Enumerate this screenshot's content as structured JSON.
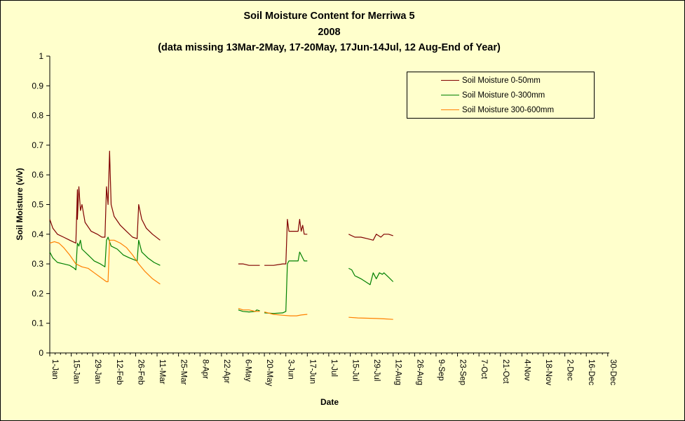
{
  "chart_data": {
    "type": "line",
    "title": "Soil Moisture Content for Merriwa 5",
    "subtitle": "2008",
    "note": "(data missing 13Mar-2May, 17-20May, 17Jun-14Jul, 12 Aug-End of Year)",
    "xlabel": "Date",
    "ylabel": "Soil Moisture (v/v)",
    "ylim": [
      0,
      1
    ],
    "y_ticks": [
      "0",
      "0.1",
      "0.2",
      "0.3",
      "0.4",
      "0.5",
      "0.6",
      "0.7",
      "0.8",
      "0.9",
      "1"
    ],
    "x_range": [
      "2008-01-01",
      "2008-12-31"
    ],
    "x_ticks": [
      {
        "date": "2008-01-01",
        "label": "1-Jan"
      },
      {
        "date": "2008-01-15",
        "label": "15-Jan"
      },
      {
        "date": "2008-01-29",
        "label": "29-Jan"
      },
      {
        "date": "2008-02-12",
        "label": "12-Feb"
      },
      {
        "date": "2008-02-26",
        "label": "26-Feb"
      },
      {
        "date": "2008-03-11",
        "label": "11-Mar"
      },
      {
        "date": "2008-03-25",
        "label": "25-Mar"
      },
      {
        "date": "2008-04-08",
        "label": "8-Apr"
      },
      {
        "date": "2008-04-22",
        "label": "22-Apr"
      },
      {
        "date": "2008-05-06",
        "label": "6-May"
      },
      {
        "date": "2008-05-20",
        "label": "20-May"
      },
      {
        "date": "2008-06-03",
        "label": "3-Jun"
      },
      {
        "date": "2008-06-17",
        "label": "17-Jun"
      },
      {
        "date": "2008-07-01",
        "label": "1-Jul"
      },
      {
        "date": "2008-07-15",
        "label": "15-Jul"
      },
      {
        "date": "2008-07-29",
        "label": "29-Jul"
      },
      {
        "date": "2008-08-12",
        "label": "12-Aug"
      },
      {
        "date": "2008-08-26",
        "label": "26-Aug"
      },
      {
        "date": "2008-09-09",
        "label": "9-Sep"
      },
      {
        "date": "2008-09-23",
        "label": "23-Sep"
      },
      {
        "date": "2008-10-07",
        "label": "7-Oct"
      },
      {
        "date": "2008-10-21",
        "label": "21-Oct"
      },
      {
        "date": "2008-11-04",
        "label": "4-Nov"
      },
      {
        "date": "2008-11-18",
        "label": "18-Nov"
      },
      {
        "date": "2008-12-02",
        "label": "2-Dec"
      },
      {
        "date": "2008-12-16",
        "label": "16-Dec"
      },
      {
        "date": "2008-12-30",
        "label": "30-Dec"
      }
    ],
    "grid": false,
    "legend_position": "top-right",
    "series": [
      {
        "name": "Soil Moisture 0-50mm",
        "color": "#800000",
        "segments": [
          [
            [
              "2008-01-01",
              0.45
            ],
            [
              "2008-01-03",
              0.42
            ],
            [
              "2008-01-06",
              0.4
            ],
            [
              "2008-01-10",
              0.39
            ],
            [
              "2008-01-14",
              0.38
            ],
            [
              "2008-01-16",
              0.375
            ],
            [
              "2008-01-18",
              0.37
            ],
            [
              "2008-01-19",
              0.55
            ],
            [
              "2008-01-19",
              0.45
            ],
            [
              "2008-01-20",
              0.56
            ],
            [
              "2008-01-21",
              0.48
            ],
            [
              "2008-01-22",
              0.5
            ],
            [
              "2008-01-24",
              0.44
            ],
            [
              "2008-01-28",
              0.41
            ],
            [
              "2008-02-01",
              0.4
            ],
            [
              "2008-02-04",
              0.39
            ],
            [
              "2008-02-06",
              0.39
            ],
            [
              "2008-02-07",
              0.56
            ],
            [
              "2008-02-08",
              0.5
            ],
            [
              "2008-02-09",
              0.68
            ],
            [
              "2008-02-10",
              0.5
            ],
            [
              "2008-02-12",
              0.46
            ],
            [
              "2008-02-16",
              0.43
            ],
            [
              "2008-02-20",
              0.41
            ],
            [
              "2008-02-24",
              0.39
            ],
            [
              "2008-02-27",
              0.385
            ],
            [
              "2008-02-28",
              0.5
            ],
            [
              "2008-03-01",
              0.45
            ],
            [
              "2008-03-04",
              0.42
            ],
            [
              "2008-03-08",
              0.4
            ],
            [
              "2008-03-13",
              0.38
            ]
          ],
          [
            [
              "2008-05-03",
              0.3
            ],
            [
              "2008-05-06",
              0.3
            ],
            [
              "2008-05-10",
              0.295
            ],
            [
              "2008-05-14",
              0.295
            ],
            [
              "2008-05-17",
              0.295
            ]
          ],
          [
            [
              "2008-05-20",
              0.295
            ],
            [
              "2008-05-26",
              0.295
            ],
            [
              "2008-06-01",
              0.3
            ],
            [
              "2008-06-03",
              0.3
            ],
            [
              "2008-06-04",
              0.45
            ],
            [
              "2008-06-05",
              0.41
            ],
            [
              "2008-06-08",
              0.41
            ],
            [
              "2008-06-11",
              0.41
            ],
            [
              "2008-06-12",
              0.45
            ],
            [
              "2008-06-13",
              0.41
            ],
            [
              "2008-06-14",
              0.43
            ],
            [
              "2008-06-15",
              0.4
            ],
            [
              "2008-06-17",
              0.4
            ]
          ],
          [
            [
              "2008-07-14",
              0.4
            ],
            [
              "2008-07-18",
              0.39
            ],
            [
              "2008-07-22",
              0.39
            ],
            [
              "2008-07-26",
              0.385
            ],
            [
              "2008-07-30",
              0.38
            ],
            [
              "2008-08-01",
              0.4
            ],
            [
              "2008-08-04",
              0.39
            ],
            [
              "2008-08-06",
              0.4
            ],
            [
              "2008-08-09",
              0.4
            ],
            [
              "2008-08-12",
              0.395
            ]
          ]
        ]
      },
      {
        "name": "Soil Moisture 0-300mm",
        "color": "#008000",
        "segments": [
          [
            [
              "2008-01-01",
              0.34
            ],
            [
              "2008-01-03",
              0.32
            ],
            [
              "2008-01-06",
              0.305
            ],
            [
              "2008-01-10",
              0.3
            ],
            [
              "2008-01-14",
              0.295
            ],
            [
              "2008-01-17",
              0.285
            ],
            [
              "2008-01-18",
              0.28
            ],
            [
              "2008-01-19",
              0.37
            ],
            [
              "2008-01-20",
              0.36
            ],
            [
              "2008-01-21",
              0.38
            ],
            [
              "2008-01-22",
              0.35
            ],
            [
              "2008-01-26",
              0.33
            ],
            [
              "2008-01-30",
              0.31
            ],
            [
              "2008-02-03",
              0.3
            ],
            [
              "2008-02-06",
              0.29
            ],
            [
              "2008-02-07",
              0.38
            ],
            [
              "2008-02-08",
              0.39
            ],
            [
              "2008-02-10",
              0.36
            ],
            [
              "2008-02-14",
              0.35
            ],
            [
              "2008-02-18",
              0.33
            ],
            [
              "2008-02-22",
              0.32
            ],
            [
              "2008-02-27",
              0.31
            ],
            [
              "2008-02-28",
              0.38
            ],
            [
              "2008-03-01",
              0.34
            ],
            [
              "2008-03-05",
              0.32
            ],
            [
              "2008-03-09",
              0.305
            ],
            [
              "2008-03-13",
              0.295
            ]
          ],
          [
            [
              "2008-05-03",
              0.145
            ],
            [
              "2008-05-06",
              0.14
            ],
            [
              "2008-05-10",
              0.138
            ],
            [
              "2008-05-14",
              0.14
            ],
            [
              "2008-05-15",
              0.145
            ],
            [
              "2008-05-17",
              0.142
            ]
          ],
          [
            [
              "2008-05-20",
              0.135
            ],
            [
              "2008-05-26",
              0.133
            ],
            [
              "2008-06-01",
              0.135
            ],
            [
              "2008-06-03",
              0.14
            ],
            [
              "2008-06-04",
              0.3
            ],
            [
              "2008-06-05",
              0.31
            ],
            [
              "2008-06-08",
              0.31
            ],
            [
              "2008-06-11",
              0.31
            ],
            [
              "2008-06-12",
              0.34
            ],
            [
              "2008-06-13",
              0.33
            ],
            [
              "2008-06-14",
              0.32
            ],
            [
              "2008-06-15",
              0.31
            ],
            [
              "2008-06-17",
              0.31
            ]
          ],
          [
            [
              "2008-07-14",
              0.285
            ],
            [
              "2008-07-16",
              0.28
            ],
            [
              "2008-07-18",
              0.26
            ],
            [
              "2008-07-20",
              0.255
            ],
            [
              "2008-07-22",
              0.25
            ],
            [
              "2008-07-25",
              0.24
            ],
            [
              "2008-07-28",
              0.23
            ],
            [
              "2008-07-30",
              0.27
            ],
            [
              "2008-08-01",
              0.25
            ],
            [
              "2008-08-03",
              0.27
            ],
            [
              "2008-08-05",
              0.265
            ],
            [
              "2008-08-06",
              0.27
            ],
            [
              "2008-08-09",
              0.255
            ],
            [
              "2008-08-12",
              0.24
            ]
          ]
        ]
      },
      {
        "name": "Soil Moisture 300-600mm",
        "color": "#ff8000",
        "segments": [
          [
            [
              "2008-01-01",
              0.37
            ],
            [
              "2008-01-04",
              0.375
            ],
            [
              "2008-01-07",
              0.37
            ],
            [
              "2008-01-10",
              0.355
            ],
            [
              "2008-01-14",
              0.33
            ],
            [
              "2008-01-18",
              0.3
            ],
            [
              "2008-01-22",
              0.29
            ],
            [
              "2008-01-26",
              0.285
            ],
            [
              "2008-01-30",
              0.27
            ],
            [
              "2008-02-03",
              0.255
            ],
            [
              "2008-02-07",
              0.24
            ],
            [
              "2008-02-08",
              0.24
            ],
            [
              "2008-02-09",
              0.38
            ],
            [
              "2008-02-12",
              0.38
            ],
            [
              "2008-02-16",
              0.37
            ],
            [
              "2008-02-20",
              0.355
            ],
            [
              "2008-02-24",
              0.33
            ],
            [
              "2008-02-28",
              0.3
            ],
            [
              "2008-03-03",
              0.275
            ],
            [
              "2008-03-08",
              0.25
            ],
            [
              "2008-03-13",
              0.232
            ]
          ],
          [
            [
              "2008-05-03",
              0.15
            ],
            [
              "2008-05-06",
              0.145
            ],
            [
              "2008-05-10",
              0.145
            ],
            [
              "2008-05-14",
              0.14
            ],
            [
              "2008-05-17",
              0.14
            ]
          ],
          [
            [
              "2008-05-20",
              0.138
            ],
            [
              "2008-05-26",
              0.13
            ],
            [
              "2008-06-01",
              0.127
            ],
            [
              "2008-06-06",
              0.125
            ],
            [
              "2008-06-10",
              0.125
            ],
            [
              "2008-06-13",
              0.128
            ],
            [
              "2008-06-17",
              0.13
            ]
          ],
          [
            [
              "2008-07-14",
              0.12
            ],
            [
              "2008-07-20",
              0.118
            ],
            [
              "2008-07-26",
              0.117
            ],
            [
              "2008-08-01",
              0.116
            ],
            [
              "2008-08-06",
              0.115
            ],
            [
              "2008-08-12",
              0.113
            ]
          ]
        ]
      }
    ]
  }
}
